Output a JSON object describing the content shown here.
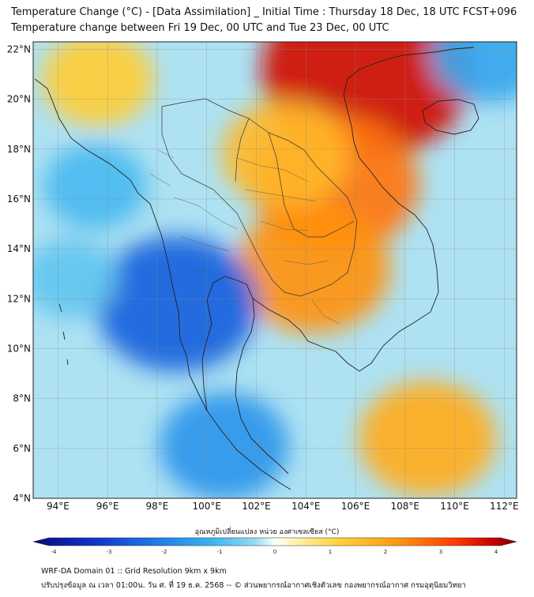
{
  "title_line1": "Temperature Change (°C) - [Data Assimilation] _ Initial Time : Thursday 18 Dec, 18 UTC FCST+096",
  "title_line2": "Temperature change between Fri 19 Dec, 00 UTC and Tue 23 Dec, 00 UTC",
  "map": {
    "lon_range": [
      93,
      112.5
    ],
    "lat_range": [
      4,
      22.3
    ],
    "lon_ticks": [
      "94°E",
      "96°E",
      "98°E",
      "100°E",
      "102°E",
      "104°E",
      "106°E",
      "108°E",
      "110°E",
      "112°E"
    ],
    "lat_ticks": [
      "22°N",
      "20°N",
      "18°N",
      "16°N",
      "14°N",
      "12°N",
      "10°N",
      "8°N",
      "6°N",
      "4°N"
    ],
    "grid": true,
    "field_anomalies_C": [
      {
        "lon": 106.5,
        "lat": 21.2,
        "value": 3.5
      },
      {
        "lon": 105.2,
        "lat": 16.6,
        "value": 2.4
      },
      {
        "lon": 104.3,
        "lat": 13.2,
        "value": 2.1
      },
      {
        "lon": 103.2,
        "lat": 17.8,
        "value": 1.5
      },
      {
        "lon": 108.9,
        "lat": 6.4,
        "value": 1.7
      },
      {
        "lon": 95.6,
        "lat": 20.8,
        "value": 1.1
      },
      {
        "lon": 98.8,
        "lat": 11.8,
        "value": -2.3
      },
      {
        "lon": 100.7,
        "lat": 6.1,
        "value": -1.5
      },
      {
        "lon": 94.5,
        "lat": 12.8,
        "value": -0.7
      },
      {
        "lon": 111.4,
        "lat": 21.8,
        "value": -1.2
      },
      {
        "lon": 95.5,
        "lat": 16.5,
        "value": -0.9
      }
    ]
  },
  "colorbar": {
    "title": "อุณหภูมิเปลี่ยนแปลง หน่วย องศาเซลเซียส (°C)",
    "ticks": [
      "-4",
      "-3",
      "-2",
      "-1",
      "0",
      "1",
      "2",
      "3",
      "4"
    ],
    "range": [
      -4,
      4
    ],
    "colors": [
      "#0a0a7a",
      "#1030c8",
      "#1e78e6",
      "#3cb4f0",
      "#96dcf0",
      "#ffffff",
      "#fff0a0",
      "#ffd23c",
      "#ff9b14",
      "#ff3c00",
      "#c80000",
      "#780000"
    ]
  },
  "footer_line1": "WRF-DA Domain 01 :: Grid Resolution 9km x 9km",
  "footer_line2": "ปรับปรุงข้อมูล ณ เวลา 01:00น. วัน ศ. ที่ 19 ธ.ค. 2568 -- © ส่วนพยากรณ์อากาศเชิงตัวเลข กองพยากรณ์อากาศ กรมอุตุนิยมวิทยา"
}
